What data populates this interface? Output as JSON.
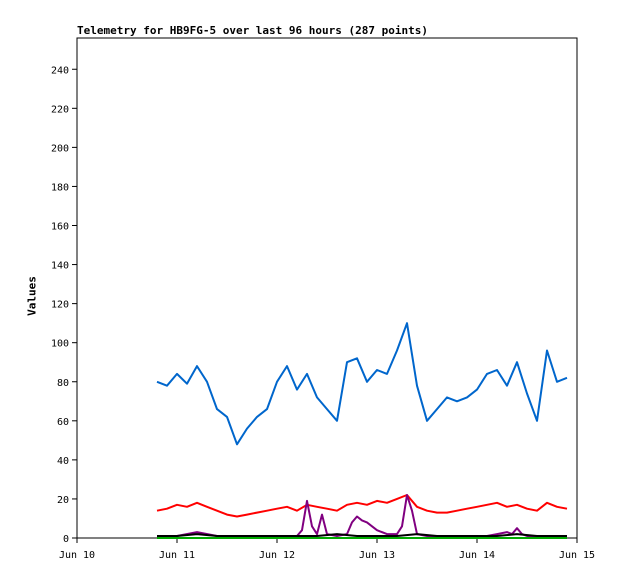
{
  "chart_data": {
    "type": "line",
    "title": "Telemetry for HB9FG-5 over last 96 hours (287 points)",
    "xlabel": "",
    "ylabel": "Values",
    "x_ticks": [
      "Jun 10",
      "Jun 11",
      "Jun 12",
      "Jun 13",
      "Jun 14",
      "Jun 15"
    ],
    "x_range_days": [
      10,
      15
    ],
    "y_ticks": [
      0,
      20,
      40,
      60,
      80,
      100,
      120,
      140,
      160,
      180,
      200,
      220,
      240
    ],
    "ylim": [
      0,
      256
    ],
    "grid": false,
    "legend": "none",
    "series": [
      {
        "color": "#0066cc",
        "x": [
          10.8,
          10.9,
          11.0,
          11.1,
          11.2,
          11.3,
          11.4,
          11.5,
          11.6,
          11.7,
          11.8,
          11.9,
          12.0,
          12.1,
          12.2,
          12.3,
          12.4,
          12.5,
          12.6,
          12.7,
          12.8,
          12.9,
          13.0,
          13.1,
          13.2,
          13.3,
          13.4,
          13.5,
          13.6,
          13.7,
          13.8,
          13.9,
          14.0,
          14.1,
          14.2,
          14.3,
          14.4,
          14.5,
          14.6,
          14.7,
          14.8,
          14.9
        ],
        "values": [
          80,
          78,
          84,
          79,
          88,
          80,
          66,
          62,
          48,
          56,
          62,
          66,
          80,
          88,
          76,
          84,
          72,
          66,
          60,
          90,
          92,
          80,
          86,
          84,
          96,
          110,
          78,
          60,
          66,
          72,
          70,
          72,
          76,
          84,
          86,
          78,
          90,
          74,
          60,
          96,
          80,
          82
        ]
      },
      {
        "color": "#ff0000",
        "x": [
          10.8,
          10.9,
          11.0,
          11.1,
          11.2,
          11.3,
          11.4,
          11.5,
          11.6,
          11.7,
          11.8,
          11.9,
          12.0,
          12.1,
          12.2,
          12.3,
          12.4,
          12.5,
          12.6,
          12.7,
          12.8,
          12.9,
          13.0,
          13.1,
          13.2,
          13.3,
          13.4,
          13.5,
          13.6,
          13.7,
          13.8,
          13.9,
          14.0,
          14.1,
          14.2,
          14.3,
          14.4,
          14.5,
          14.6,
          14.7,
          14.8,
          14.9
        ],
        "values": [
          14,
          15,
          17,
          16,
          18,
          16,
          14,
          12,
          11,
          12,
          13,
          14,
          15,
          16,
          14,
          17,
          16,
          15,
          14,
          17,
          18,
          17,
          19,
          18,
          20,
          22,
          16,
          14,
          13,
          13,
          14,
          15,
          16,
          17,
          18,
          16,
          17,
          15,
          14,
          18,
          16,
          15
        ]
      },
      {
        "color": "#800080",
        "x": [
          10.8,
          11.0,
          11.2,
          11.4,
          11.6,
          11.8,
          12.0,
          12.2,
          12.25,
          12.3,
          12.35,
          12.4,
          12.45,
          12.5,
          12.6,
          12.7,
          12.75,
          12.8,
          12.85,
          12.9,
          13.0,
          13.1,
          13.2,
          13.25,
          13.3,
          13.35,
          13.4,
          13.5,
          13.6,
          13.8,
          14.0,
          14.1,
          14.2,
          14.3,
          14.35,
          14.4,
          14.45,
          14.5,
          14.6,
          14.8,
          14.9
        ],
        "values": [
          1,
          1,
          3,
          1,
          1,
          1,
          1,
          1,
          4,
          19,
          6,
          2,
          12,
          2,
          1,
          2,
          8,
          11,
          9,
          8,
          4,
          2,
          2,
          6,
          22,
          14,
          2,
          1,
          1,
          1,
          1,
          1,
          2,
          3,
          2,
          5,
          2,
          1,
          1,
          1,
          1
        ]
      },
      {
        "color": "#000000",
        "x": [
          10.8,
          11.0,
          11.2,
          11.4,
          11.6,
          11.8,
          12.0,
          12.2,
          12.4,
          12.6,
          12.8,
          13.0,
          13.2,
          13.4,
          13.6,
          13.8,
          14.0,
          14.2,
          14.4,
          14.6,
          14.8,
          14.9
        ],
        "values": [
          1,
          1,
          2,
          1,
          1,
          1,
          1,
          1,
          1,
          2,
          1,
          1,
          1,
          2,
          1,
          1,
          1,
          1,
          2,
          1,
          1,
          1
        ]
      },
      {
        "color": "#00aa00",
        "x": [
          10.8,
          11.2,
          11.6,
          12.0,
          12.4,
          12.8,
          13.2,
          13.6,
          14.0,
          14.4,
          14.8,
          14.9
        ],
        "values": [
          0,
          0,
          0,
          0,
          0,
          0,
          0,
          0,
          0,
          0,
          0,
          0
        ]
      }
    ]
  }
}
